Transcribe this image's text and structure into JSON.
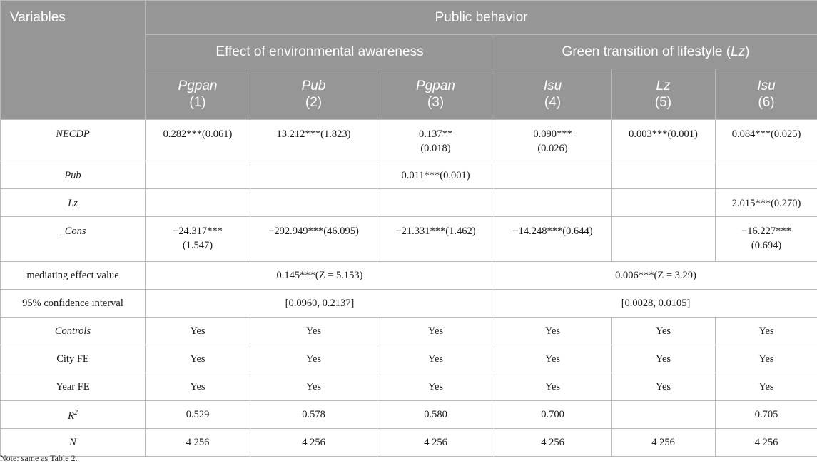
{
  "header": {
    "variables_label": "Variables",
    "group_title": "Public behavior",
    "subgroup_1": "Effect of environmental awareness",
    "subgroup_2_prefix": "Green transition of lifestyle (",
    "subgroup_2_italic": "Lz",
    "subgroup_2_suffix": ")",
    "columns": [
      {
        "var": "Pgpan",
        "num": "(1)"
      },
      {
        "var": "Pub",
        "num": "(2)"
      },
      {
        "var": "Pgpan",
        "num": "(3)"
      },
      {
        "var": "Isu",
        "num": "(4)"
      },
      {
        "var": "Lz",
        "num": "(5)"
      },
      {
        "var": "Isu",
        "num": "(6)"
      }
    ]
  },
  "rows": {
    "necdp": {
      "label": "NECDP",
      "cells": [
        "0.282***(0.061)",
        "13.212***(1.823)",
        "0.137**",
        "0.090***",
        "0.003***(0.001)",
        "0.084***(0.025)"
      ],
      "cells_line2": [
        "",
        "",
        "(0.018)",
        "(0.026)",
        "",
        ""
      ]
    },
    "pub": {
      "label": "Pub",
      "cells": [
        "",
        "",
        "0.011***(0.001)",
        "",
        "",
        ""
      ]
    },
    "lz": {
      "label": "Lz",
      "cells": [
        "",
        "",
        "",
        "",
        "",
        "2.015***(0.270)"
      ]
    },
    "cons": {
      "label": "_Cons",
      "cells": [
        "−24.317***",
        "−292.949***(46.095)",
        "−21.331***(1.462)",
        "−14.248***(0.644)",
        "",
        "−16.227***"
      ],
      "cells_line2": [
        "(1.547)",
        "",
        "",
        "",
        "",
        "(0.694)"
      ]
    },
    "mediating": {
      "label": "mediating effect value",
      "left": "0.145***(Z = 5.153)",
      "right": "0.006***(Z = 3.29)"
    },
    "ci": {
      "label": "95% confidence interval",
      "left": "[0.0960, 0.2137]",
      "right": "[0.0028, 0.0105]"
    },
    "controls": {
      "label": "Controls",
      "cells": [
        "Yes",
        "Yes",
        "Yes",
        "Yes",
        "Yes",
        "Yes"
      ]
    },
    "cityfe": {
      "label": "City FE",
      "cells": [
        "Yes",
        "Yes",
        "Yes",
        "Yes",
        "Yes",
        "Yes"
      ]
    },
    "yearfe": {
      "label": "Year FE",
      "cells": [
        "Yes",
        "Yes",
        "Yes",
        "Yes",
        "Yes",
        "Yes"
      ]
    },
    "r2": {
      "label": "R",
      "label_sup": "2",
      "cells": [
        "0.529",
        "0.578",
        "0.580",
        "0.700",
        "",
        "0.705"
      ]
    },
    "n": {
      "label": "N",
      "cells": [
        "4 256",
        "4 256",
        "4 256",
        "4 256",
        "4 256",
        "4 256"
      ]
    }
  },
  "note": "Note: same as Table 2."
}
